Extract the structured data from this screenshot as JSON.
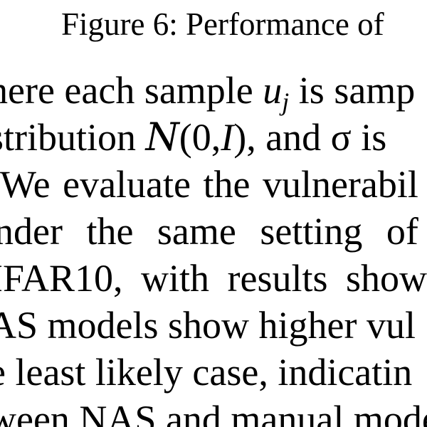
{
  "caption": "Figure 6: Performance of",
  "paragraph": {
    "line1": {
      "before": "here each sample ",
      "var": "u",
      "subscript": "j",
      "after": " is samp"
    },
    "line2": {
      "before": "stribution ",
      "cal": "N",
      "args_open": "(0,",
      "args_var": "I",
      "args_close": ")",
      "after": ", and σ is"
    },
    "line3": "We evaluate the vulnerabil",
    "line4": "nder the same setting of Fi",
    "line5": "IFAR10, with results show",
    "line6": "AS models show higher vul",
    "line7": "e least likely case, indicatin",
    "line8": "ween NAS and manual model"
  }
}
